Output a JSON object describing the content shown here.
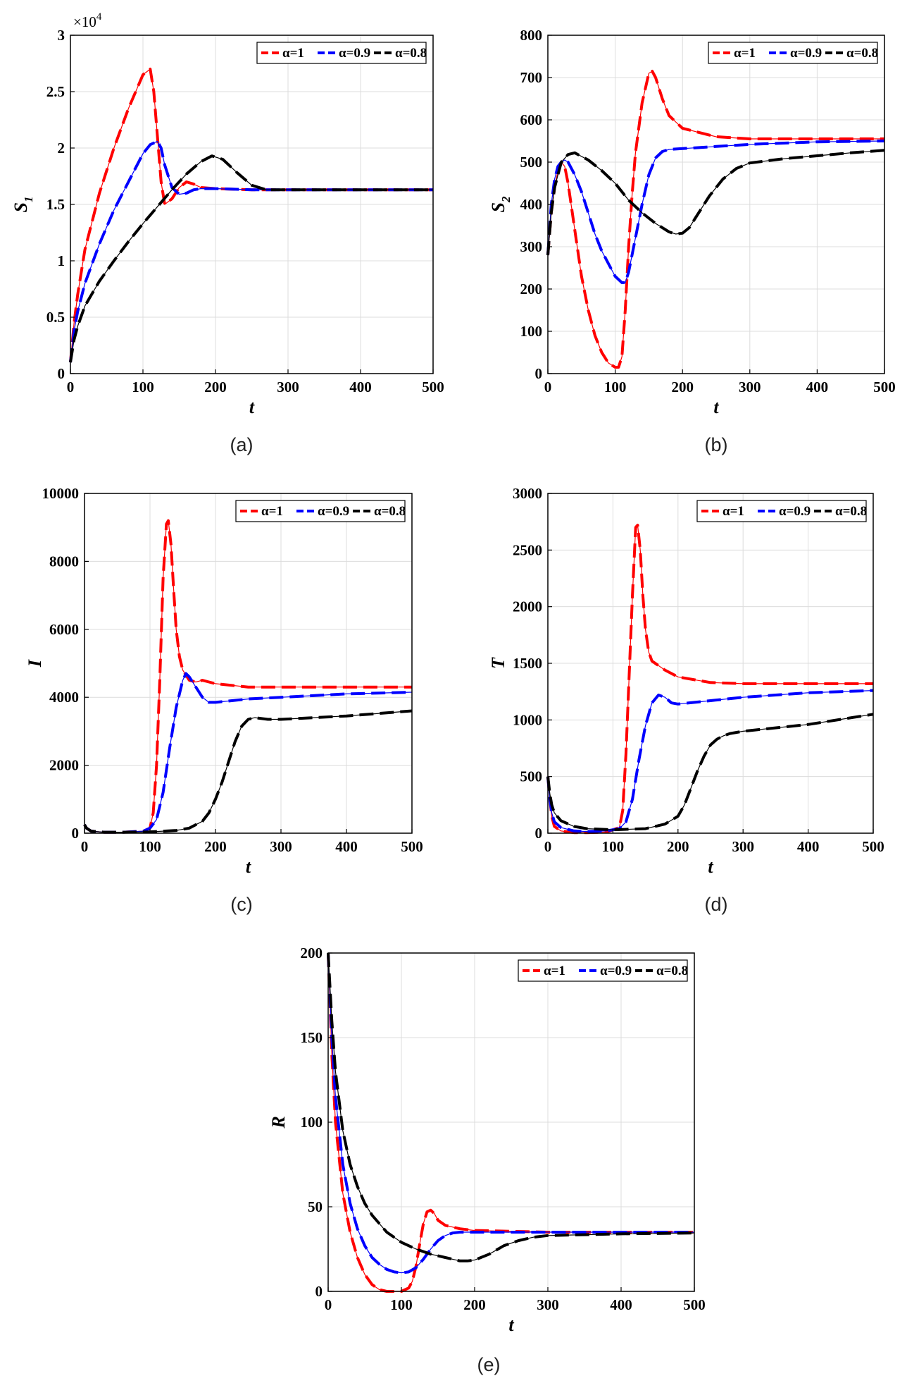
{
  "figure": {
    "legend_entries": [
      "α=1",
      "α=0.9",
      "α=0.8"
    ],
    "series_colors": [
      "#ff0000",
      "#0000ff",
      "#000000"
    ]
  },
  "chart_data": [
    {
      "id": "a",
      "caption": "(a)",
      "type": "line",
      "xlabel": "t",
      "ylabel": "S",
      "ylabel_sub": "1",
      "exponent_base": "×10",
      "exponent_power": "4",
      "xlim": [
        0,
        500
      ],
      "ylim": [
        0,
        30000
      ],
      "xticks": [
        0,
        100,
        200,
        300,
        400,
        500
      ],
      "yticks": [
        0,
        5000,
        10000,
        15000,
        20000,
        25000,
        30000
      ],
      "ytick_labels": [
        "0",
        "0.5",
        "1",
        "1.5",
        "2",
        "2.5",
        "3"
      ],
      "grid": true,
      "legend_position": "top-right",
      "series": [
        {
          "name": "α=1",
          "x": [
            0,
            5,
            10,
            20,
            40,
            60,
            80,
            100,
            110,
            115,
            120,
            125,
            130,
            140,
            150,
            160,
            170,
            180,
            200,
            250,
            300,
            400,
            500
          ],
          "y": [
            1000,
            4500,
            7000,
            11000,
            16000,
            20000,
            23500,
            26500,
            27000,
            25000,
            21000,
            17000,
            15000,
            15500,
            16500,
            17000,
            16800,
            16500,
            16400,
            16300,
            16300,
            16300,
            16300
          ]
        },
        {
          "name": "α=0.9",
          "x": [
            0,
            5,
            10,
            20,
            40,
            60,
            80,
            100,
            110,
            120,
            125,
            130,
            140,
            150,
            160,
            170,
            180,
            200,
            250,
            300,
            400,
            500
          ],
          "y": [
            1000,
            3800,
            5500,
            8000,
            11500,
            14500,
            17000,
            19500,
            20300,
            20600,
            20000,
            18500,
            16500,
            15900,
            16000,
            16300,
            16400,
            16400,
            16300,
            16300,
            16300,
            16300
          ]
        },
        {
          "name": "α=0.8",
          "x": [
            0,
            5,
            10,
            20,
            40,
            60,
            80,
            100,
            120,
            140,
            160,
            180,
            195,
            210,
            230,
            250,
            270,
            300,
            400,
            500
          ],
          "y": [
            1000,
            3000,
            4200,
            6000,
            8200,
            10000,
            11700,
            13300,
            14800,
            16300,
            17700,
            18800,
            19300,
            19000,
            17800,
            16700,
            16300,
            16300,
            16300,
            16300
          ]
        }
      ]
    },
    {
      "id": "b",
      "caption": "(b)",
      "type": "line",
      "xlabel": "t",
      "ylabel": "S",
      "ylabel_sub": "2",
      "xlim": [
        0,
        500
      ],
      "ylim": [
        0,
        800
      ],
      "xticks": [
        0,
        100,
        200,
        300,
        400,
        500
      ],
      "yticks": [
        0,
        100,
        200,
        300,
        400,
        500,
        600,
        700,
        800
      ],
      "ytick_labels": [
        "0",
        "100",
        "200",
        "300",
        "400",
        "500",
        "600",
        "700",
        "800"
      ],
      "grid": true,
      "legend_position": "top-right",
      "series": [
        {
          "name": "α=1",
          "x": [
            0,
            5,
            10,
            15,
            20,
            25,
            30,
            40,
            50,
            60,
            70,
            80,
            90,
            100,
            105,
            110,
            115,
            120,
            125,
            130,
            140,
            150,
            155,
            160,
            170,
            180,
            200,
            250,
            300,
            400,
            500
          ],
          "y": [
            280,
            380,
            440,
            480,
            500,
            490,
            450,
            340,
            230,
            150,
            90,
            50,
            25,
            15,
            15,
            40,
            150,
            300,
            420,
            520,
            640,
            710,
            715,
            700,
            650,
            610,
            580,
            560,
            555,
            555,
            555
          ]
        },
        {
          "name": "α=0.9",
          "x": [
            0,
            5,
            10,
            15,
            20,
            25,
            30,
            40,
            50,
            60,
            70,
            80,
            90,
            100,
            110,
            115,
            120,
            130,
            140,
            150,
            160,
            170,
            180,
            200,
            250,
            300,
            400,
            500
          ],
          "y": [
            280,
            400,
            460,
            490,
            500,
            505,
            500,
            470,
            430,
            380,
            330,
            290,
            260,
            230,
            215,
            215,
            240,
            320,
            400,
            470,
            510,
            525,
            530,
            532,
            537,
            542,
            548,
            550
          ]
        },
        {
          "name": "α=0.8",
          "x": [
            0,
            5,
            10,
            20,
            30,
            40,
            60,
            80,
            100,
            120,
            140,
            160,
            180,
            190,
            200,
            210,
            220,
            240,
            260,
            280,
            300,
            350,
            400,
            450,
            500
          ],
          "y": [
            280,
            380,
            440,
            500,
            518,
            522,
            505,
            480,
            450,
            410,
            380,
            355,
            335,
            330,
            332,
            345,
            370,
            420,
            460,
            485,
            498,
            508,
            515,
            522,
            528
          ]
        }
      ]
    },
    {
      "id": "c",
      "caption": "(c)",
      "type": "line",
      "xlabel": "t",
      "ylabel": "I",
      "xlim": [
        0,
        500
      ],
      "ylim": [
        0,
        10000
      ],
      "xticks": [
        0,
        100,
        200,
        300,
        400,
        500
      ],
      "yticks": [
        0,
        2000,
        4000,
        6000,
        8000,
        10000
      ],
      "ytick_labels": [
        "0",
        "2000",
        "4000",
        "6000",
        "8000",
        "10000"
      ],
      "grid": true,
      "legend_position": "top-right",
      "series": [
        {
          "name": "α=1",
          "x": [
            0,
            3,
            10,
            30,
            60,
            90,
            100,
            105,
            110,
            115,
            120,
            125,
            128,
            132,
            136,
            140,
            145,
            150,
            160,
            170,
            180,
            190,
            200,
            250,
            300,
            400,
            500
          ],
          "y": [
            250,
            150,
            60,
            30,
            30,
            60,
            150,
            600,
            2000,
            4500,
            7500,
            9100,
            9200,
            8500,
            7200,
            6000,
            5200,
            4800,
            4500,
            4450,
            4500,
            4450,
            4400,
            4300,
            4300,
            4300,
            4300
          ]
        },
        {
          "name": "α=0.9",
          "x": [
            0,
            3,
            10,
            30,
            60,
            90,
            100,
            110,
            120,
            130,
            140,
            150,
            155,
            160,
            170,
            180,
            190,
            200,
            250,
            300,
            400,
            500
          ],
          "y": [
            250,
            150,
            60,
            30,
            30,
            60,
            150,
            400,
            1200,
            2500,
            3700,
            4500,
            4700,
            4600,
            4300,
            4000,
            3850,
            3850,
            3950,
            4000,
            4100,
            4150
          ]
        },
        {
          "name": "α=0.8",
          "x": [
            0,
            3,
            10,
            30,
            60,
            100,
            140,
            160,
            180,
            190,
            200,
            210,
            220,
            230,
            240,
            250,
            260,
            280,
            300,
            400,
            500
          ],
          "y": [
            250,
            150,
            60,
            30,
            30,
            40,
            80,
            150,
            350,
            600,
            1000,
            1500,
            2100,
            2700,
            3150,
            3350,
            3400,
            3350,
            3350,
            3450,
            3600
          ]
        }
      ]
    },
    {
      "id": "d",
      "caption": "(d)",
      "type": "line",
      "xlabel": "t",
      "ylabel": "T",
      "xlim": [
        0,
        500
      ],
      "ylim": [
        0,
        3000
      ],
      "xticks": [
        0,
        100,
        200,
        300,
        400,
        500
      ],
      "yticks": [
        0,
        500,
        1000,
        1500,
        2000,
        2500,
        3000
      ],
      "ytick_labels": [
        "0",
        "500",
        "1000",
        "1500",
        "2000",
        "2500",
        "3000"
      ],
      "grid": true,
      "legend_position": "top-right",
      "series": [
        {
          "name": "α=1",
          "x": [
            0,
            3,
            6,
            10,
            20,
            40,
            60,
            90,
            110,
            115,
            120,
            125,
            130,
            135,
            138,
            142,
            146,
            150,
            155,
            160,
            170,
            180,
            200,
            250,
            300,
            400,
            500
          ],
          "y": [
            500,
            300,
            150,
            60,
            20,
            5,
            5,
            10,
            50,
            200,
            700,
            1400,
            2100,
            2700,
            2720,
            2500,
            2100,
            1800,
            1600,
            1520,
            1480,
            1440,
            1380,
            1330,
            1320,
            1320,
            1320
          ]
        },
        {
          "name": "α=0.9",
          "x": [
            0,
            3,
            6,
            10,
            20,
            40,
            60,
            90,
            110,
            120,
            130,
            140,
            150,
            160,
            170,
            180,
            190,
            200,
            250,
            300,
            400,
            500
          ],
          "y": [
            500,
            300,
            180,
            100,
            50,
            20,
            15,
            20,
            40,
            100,
            300,
            650,
            950,
            1150,
            1220,
            1200,
            1150,
            1140,
            1170,
            1200,
            1240,
            1260
          ]
        },
        {
          "name": "α=0.8",
          "x": [
            0,
            3,
            6,
            10,
            20,
            40,
            60,
            100,
            150,
            180,
            200,
            210,
            220,
            230,
            240,
            250,
            260,
            270,
            280,
            300,
            400,
            500
          ],
          "y": [
            500,
            350,
            250,
            180,
            110,
            60,
            40,
            30,
            40,
            80,
            150,
            250,
            400,
            550,
            680,
            780,
            830,
            860,
            880,
            900,
            960,
            1050
          ]
        }
      ]
    },
    {
      "id": "e",
      "caption": "(e)",
      "type": "line",
      "xlabel": "t",
      "ylabel": "R",
      "xlim": [
        0,
        500
      ],
      "ylim": [
        0,
        200
      ],
      "xticks": [
        0,
        100,
        200,
        300,
        400,
        500
      ],
      "yticks": [
        0,
        50,
        100,
        150,
        200
      ],
      "ytick_labels": [
        "0",
        "50",
        "100",
        "150",
        "200"
      ],
      "grid": true,
      "legend_position": "top-right",
      "series": [
        {
          "name": "α=1",
          "x": [
            0,
            5,
            10,
            20,
            30,
            40,
            50,
            60,
            70,
            80,
            90,
            100,
            110,
            115,
            120,
            125,
            130,
            135,
            140,
            145,
            150,
            160,
            180,
            200,
            250,
            300,
            400,
            500
          ],
          "y": [
            200,
            140,
            100,
            58,
            35,
            20,
            10,
            4,
            1,
            0,
            0,
            0,
            2,
            6,
            15,
            28,
            40,
            47,
            48,
            46,
            42,
            39,
            37,
            36,
            35.5,
            35,
            35,
            35
          ]
        },
        {
          "name": "α=0.9",
          "x": [
            0,
            5,
            10,
            20,
            30,
            40,
            50,
            60,
            70,
            80,
            90,
            100,
            110,
            120,
            130,
            140,
            150,
            160,
            170,
            180,
            200,
            250,
            300,
            400,
            500
          ],
          "y": [
            200,
            150,
            115,
            75,
            52,
            37,
            27,
            20,
            16,
            13,
            11.5,
            11,
            11.5,
            14,
            19,
            25,
            30,
            33,
            34.5,
            35,
            35,
            35,
            35,
            35,
            35
          ]
        },
        {
          "name": "α=0.8",
          "x": [
            0,
            5,
            10,
            20,
            30,
            40,
            50,
            60,
            70,
            80,
            100,
            120,
            140,
            160,
            180,
            190,
            200,
            220,
            240,
            260,
            280,
            300,
            350,
            400,
            500
          ],
          "y": [
            200,
            160,
            130,
            95,
            75,
            62,
            52,
            45,
            40,
            35,
            29,
            25,
            22,
            20,
            18,
            18,
            18.5,
            22,
            27,
            30,
            32,
            33,
            33.5,
            34,
            34.5
          ]
        }
      ]
    }
  ]
}
